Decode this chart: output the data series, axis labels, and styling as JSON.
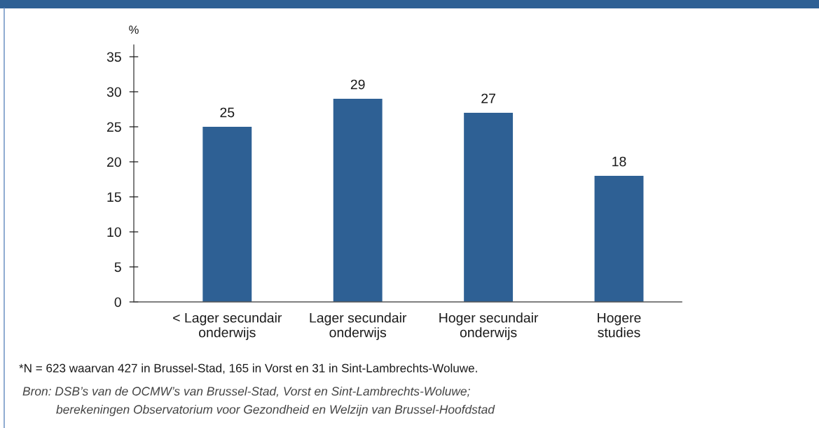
{
  "chart_data": {
    "type": "bar",
    "ylabel": "%",
    "categories": [
      "< Lager secundair\nonderwijs",
      "Lager secundair\nonderwijs",
      "Hoger secundair\nonderwijs",
      "Hogere\nstudies"
    ],
    "values": [
      25,
      29,
      27,
      18
    ],
    "color": "#2e6094",
    "ylim": [
      0,
      36.7
    ],
    "yticks": [
      0,
      5,
      10,
      15,
      20,
      25,
      30,
      35
    ],
    "data_labels": true,
    "grid": false,
    "legend": false,
    "annotations": [
      "*N = 623 waarvan 427 in Brussel-Stad, 165 in Vorst en 31 in Sint-Lambrechts-Woluwe.",
      "Bron: DSB’s van de OCMW’s van Brussel-Stad, Vorst en Sint-Lambrechts-Woluwe;\nberekeningen Observatorium voor Gezondheid en Welzijn van Brussel-Hoofdstad"
    ]
  }
}
